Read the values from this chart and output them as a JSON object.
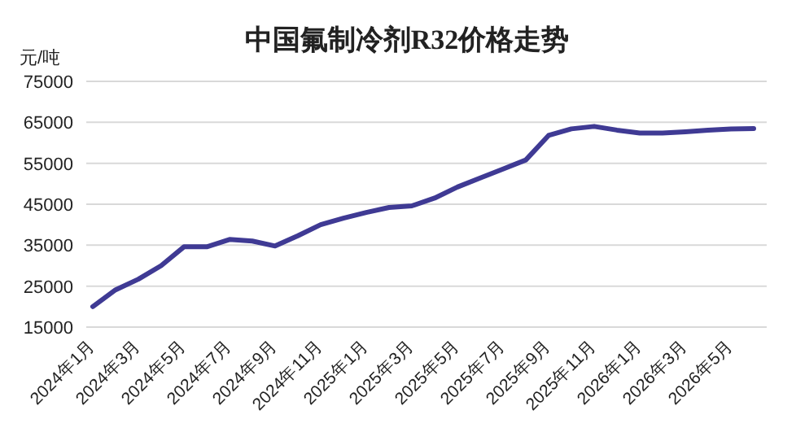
{
  "chart_data": {
    "type": "line",
    "title": "中国氟制冷剂R32价格走势",
    "ylabel": "元/吨",
    "categories": [
      "2024年1月",
      null,
      "2024年3月",
      null,
      "2024年5月",
      null,
      "2024年7月",
      null,
      "2024年9月",
      null,
      "2024年11月",
      null,
      "2025年1月",
      null,
      "2025年3月",
      null,
      "2025年5月",
      null,
      "2025年7月",
      null,
      "2025年9月",
      null,
      "2025年11月",
      null,
      "2026年1月",
      null,
      "2026年3月",
      null,
      "2026年5月",
      null
    ],
    "series": [
      {
        "color": "#3f3a94",
        "values": [
          20000,
          24100,
          26700,
          30000,
          34600,
          34600,
          36400,
          36000,
          34800,
          37300,
          40000,
          41600,
          43000,
          44200,
          44600,
          46500,
          49200,
          51400,
          53600,
          55800,
          61800,
          63400,
          64000,
          63100,
          62400,
          62400,
          62700,
          63100,
          63400,
          63500
        ]
      }
    ],
    "ylim": [
      15000,
      75000
    ],
    "yticks": [
      15000,
      25000,
      35000,
      45000,
      55000,
      65000,
      75000
    ],
    "grid": "y",
    "line_style": "solid"
  }
}
